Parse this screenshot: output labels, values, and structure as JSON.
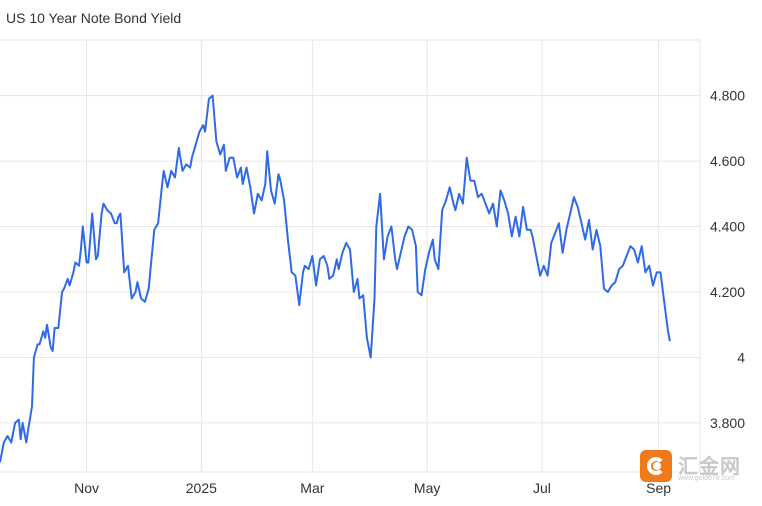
{
  "chart_data": {
    "type": "line",
    "title": "US 10 Year Note Bond Yield",
    "xlabel": "",
    "ylabel": "",
    "ylim": [
      3.65,
      4.97
    ],
    "y_ticks": [
      {
        "value": 3.8,
        "label": "3.800"
      },
      {
        "value": 4.0,
        "label": "4"
      },
      {
        "value": 4.2,
        "label": "4.200"
      },
      {
        "value": 4.4,
        "label": "4.400"
      },
      {
        "value": 4.6,
        "label": "4.600"
      },
      {
        "value": 4.8,
        "label": "4.800"
      }
    ],
    "x_ticks": [
      {
        "label": "Nov",
        "day": 31
      },
      {
        "label": "2025",
        "day": 92
      },
      {
        "label": "Mar",
        "day": 151
      },
      {
        "label": "May",
        "day": 212
      },
      {
        "label": "Jul",
        "day": 273
      },
      {
        "label": "Sep",
        "day": 335
      }
    ],
    "x_day_range": [
      -15,
      357
    ],
    "grid": true,
    "legend": "none",
    "line_color": "#2f6be6",
    "grid_color": "#e6e6e6",
    "series": [
      {
        "day": [
          -15,
          -13,
          -11,
          -9,
          -7,
          -5,
          -4,
          -3,
          -1,
          0,
          2,
          3,
          5,
          6,
          8,
          9,
          10,
          12,
          13,
          14,
          16,
          18,
          19,
          21,
          22,
          24,
          25,
          27,
          28,
          29,
          31,
          32,
          34,
          36,
          37,
          39,
          40,
          42,
          44,
          46,
          47,
          48,
          49,
          51,
          53,
          55,
          57,
          58,
          60,
          62,
          64,
          65,
          67,
          69,
          71,
          72,
          74,
          76,
          78,
          80,
          82,
          84,
          86,
          87,
          89,
          91,
          93,
          94,
          96,
          98,
          100,
          102,
          104,
          105,
          107,
          109,
          111,
          113,
          114,
          116,
          118,
          120,
          122,
          124,
          126,
          127,
          129,
          131,
          133,
          134,
          136,
          138,
          140,
          142,
          144,
          146,
          147,
          149,
          151,
          153,
          155,
          157,
          159,
          160,
          162,
          164,
          165,
          167,
          169,
          171,
          173,
          175,
          176,
          178,
          180,
          182,
          184,
          185,
          187,
          189,
          191,
          193,
          195,
          196,
          198,
          200,
          202,
          204,
          206,
          207,
          209,
          211,
          213,
          215,
          216,
          218,
          220,
          222,
          224,
          226,
          227,
          229,
          231,
          233,
          235,
          237,
          239,
          241,
          243,
          245,
          247,
          249,
          251,
          253,
          255,
          257,
          259,
          261,
          263,
          265,
          267,
          268,
          270,
          272,
          274,
          276,
          278,
          280,
          282,
          284,
          286,
          288,
          290,
          292,
          294,
          296,
          298,
          300,
          302,
          304,
          306,
          308,
          310,
          312,
          314,
          316,
          318,
          320,
          322,
          324,
          326,
          328,
          330,
          332,
          334,
          336,
          338,
          340,
          341
        ],
        "y": [
          3.68,
          3.74,
          3.76,
          3.74,
          3.8,
          3.81,
          3.75,
          3.8,
          3.74,
          3.78,
          3.85,
          4.0,
          4.04,
          4.04,
          4.08,
          4.06,
          4.1,
          4.03,
          4.02,
          4.09,
          4.09,
          4.2,
          4.21,
          4.24,
          4.22,
          4.26,
          4.29,
          4.28,
          4.33,
          4.4,
          4.29,
          4.29,
          4.44,
          4.3,
          4.31,
          4.44,
          4.47,
          4.45,
          4.44,
          4.41,
          4.41,
          4.43,
          4.44,
          4.26,
          4.28,
          4.18,
          4.2,
          4.23,
          4.18,
          4.17,
          4.21,
          4.27,
          4.39,
          4.41,
          4.52,
          4.57,
          4.52,
          4.57,
          4.55,
          4.64,
          4.57,
          4.59,
          4.58,
          4.61,
          4.65,
          4.69,
          4.71,
          4.69,
          4.79,
          4.8,
          4.66,
          4.62,
          4.65,
          4.57,
          4.61,
          4.61,
          4.55,
          4.58,
          4.53,
          4.58,
          4.52,
          4.44,
          4.5,
          4.48,
          4.53,
          4.63,
          4.51,
          4.47,
          4.56,
          4.54,
          4.48,
          4.36,
          4.26,
          4.25,
          4.16,
          4.26,
          4.28,
          4.27,
          4.31,
          4.22,
          4.3,
          4.31,
          4.28,
          4.24,
          4.25,
          4.3,
          4.27,
          4.32,
          4.35,
          4.33,
          4.2,
          4.24,
          4.18,
          4.19,
          4.06,
          4.0,
          4.18,
          4.4,
          4.5,
          4.3,
          4.37,
          4.4,
          4.3,
          4.27,
          4.32,
          4.37,
          4.4,
          4.39,
          4.34,
          4.2,
          4.19,
          4.27,
          4.32,
          4.36,
          4.3,
          4.27,
          4.45,
          4.48,
          4.52,
          4.47,
          4.45,
          4.5,
          4.47,
          4.61,
          4.54,
          4.54,
          4.49,
          4.5,
          4.47,
          4.44,
          4.47,
          4.4,
          4.51,
          4.48,
          4.44,
          4.37,
          4.43,
          4.37,
          4.46,
          4.39,
          4.39,
          4.37,
          4.31,
          4.25,
          4.28,
          4.25,
          4.35,
          4.38,
          4.41,
          4.32,
          4.39,
          4.44,
          4.49,
          4.46,
          4.41,
          4.36,
          4.42,
          4.33,
          4.39,
          4.34,
          4.21,
          4.2,
          4.22,
          4.23,
          4.27,
          4.28,
          4.31,
          4.34,
          4.33,
          4.29,
          4.34,
          4.26,
          4.28,
          4.22,
          4.26,
          4.26,
          4.17,
          4.08,
          4.05,
          4.09,
          4.04,
          4.07,
          4.05,
          4.04
        ]
      }
    ]
  },
  "watermark": {
    "brand": "汇金网",
    "url": "www.gold678.com"
  }
}
